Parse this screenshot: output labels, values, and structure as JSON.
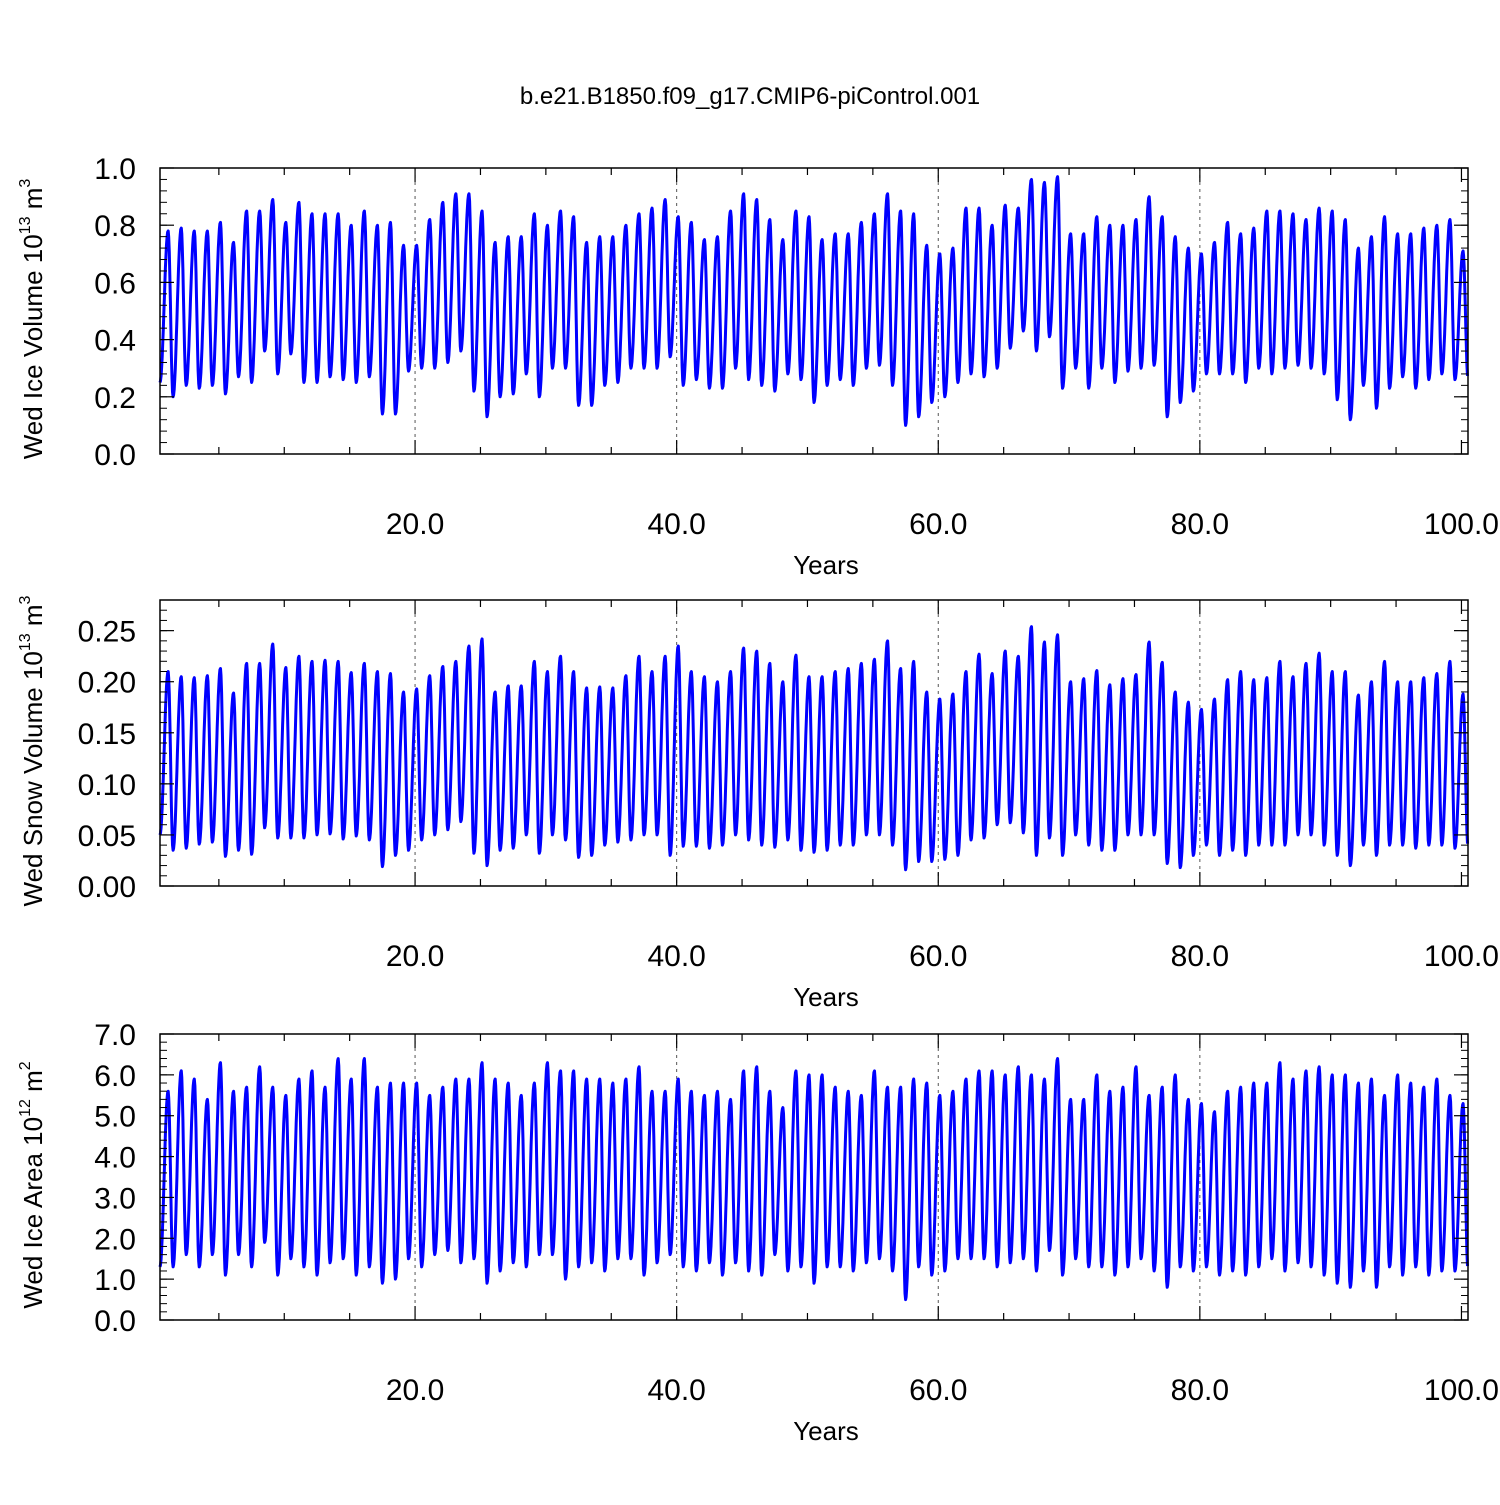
{
  "title": "b.e21.B1850.f09_g17.CMIP6-piControl.001",
  "line_color": "#0000ff",
  "chart_data": [
    {
      "type": "line",
      "xlabel": "Years",
      "ylabel": "Wed Ice Volume 10",
      "ylabel_exp": "13",
      "ylabel_unit": "m",
      "ylabel_unit_exp": "3",
      "xlim": [
        0.5,
        100.5
      ],
      "ylim": [
        0.0,
        1.0
      ],
      "xticks": [
        "20.0",
        "40.0",
        "60.0",
        "80.0",
        "100.0"
      ],
      "yticks": [
        "0.0",
        "0.2",
        "0.4",
        "0.6",
        "0.8",
        "1.0"
      ],
      "series": [
        {
          "x_start_year": 1,
          "values_per_year": 12,
          "annual_max": [
            0.78,
            0.79,
            0.78,
            0.78,
            0.81,
            0.74,
            0.85,
            0.85,
            0.89,
            0.81,
            0.88,
            0.84,
            0.84,
            0.84,
            0.8,
            0.85,
            0.8,
            0.81,
            0.73,
            0.73,
            0.82,
            0.88,
            0.91,
            0.91,
            0.85,
            0.74,
            0.76,
            0.76,
            0.84,
            0.8,
            0.85,
            0.83,
            0.74,
            0.76,
            0.76,
            0.8,
            0.84,
            0.86,
            0.89,
            0.83,
            0.81,
            0.75,
            0.76,
            0.85,
            0.91,
            0.89,
            0.82,
            0.75,
            0.85,
            0.83,
            0.75,
            0.77,
            0.77,
            0.81,
            0.84,
            0.91,
            0.85,
            0.84,
            0.73,
            0.7,
            0.72,
            0.86,
            0.86,
            0.8,
            0.87,
            0.86,
            0.96,
            0.95,
            0.97,
            0.77,
            0.77,
            0.83,
            0.8,
            0.8,
            0.82,
            0.9,
            0.83,
            0.76,
            0.72,
            0.7,
            0.74,
            0.81,
            0.77,
            0.79,
            0.85,
            0.85,
            0.84,
            0.82,
            0.86,
            0.85,
            0.82,
            0.72,
            0.76,
            0.83,
            0.77,
            0.77,
            0.79,
            0.8,
            0.82,
            0.71
          ],
          "annual_min": [
            0.25,
            0.2,
            0.24,
            0.23,
            0.24,
            0.21,
            0.27,
            0.25,
            0.36,
            0.28,
            0.35,
            0.25,
            0.25,
            0.27,
            0.26,
            0.25,
            0.27,
            0.14,
            0.14,
            0.29,
            0.3,
            0.3,
            0.32,
            0.36,
            0.22,
            0.13,
            0.2,
            0.21,
            0.28,
            0.2,
            0.3,
            0.3,
            0.17,
            0.17,
            0.24,
            0.25,
            0.3,
            0.3,
            0.3,
            0.34,
            0.24,
            0.26,
            0.23,
            0.23,
            0.3,
            0.26,
            0.24,
            0.22,
            0.28,
            0.26,
            0.18,
            0.24,
            0.26,
            0.24,
            0.3,
            0.31,
            0.24,
            0.1,
            0.13,
            0.18,
            0.2,
            0.25,
            0.28,
            0.27,
            0.3,
            0.37,
            0.43,
            0.36,
            0.41,
            0.23,
            0.3,
            0.23,
            0.3,
            0.25,
            0.29,
            0.3,
            0.31,
            0.13,
            0.18,
            0.22,
            0.28,
            0.28,
            0.28,
            0.25,
            0.3,
            0.28,
            0.3,
            0.31,
            0.3,
            0.28,
            0.19,
            0.12,
            0.24,
            0.16,
            0.23,
            0.27,
            0.23,
            0.26,
            0.28,
            0.26
          ]
        }
      ]
    },
    {
      "type": "line",
      "xlabel": "Years",
      "ylabel": "Wed Snow Volume 10",
      "ylabel_exp": "13",
      "ylabel_unit": "m",
      "ylabel_unit_exp": "3",
      "xlim": [
        0.5,
        100.5
      ],
      "ylim": [
        0.0,
        0.28
      ],
      "xticks": [
        "20.0",
        "40.0",
        "60.0",
        "80.0",
        "100.0"
      ],
      "yticks": [
        "0.00",
        "0.05",
        "0.10",
        "0.15",
        "0.20",
        "0.25"
      ],
      "series": [
        {
          "x_start_year": 1,
          "values_per_year": 12,
          "annual_max": [
            0.21,
            0.205,
            0.204,
            0.206,
            0.213,
            0.189,
            0.218,
            0.218,
            0.237,
            0.214,
            0.225,
            0.22,
            0.221,
            0.22,
            0.209,
            0.218,
            0.21,
            0.208,
            0.19,
            0.193,
            0.206,
            0.215,
            0.22,
            0.235,
            0.242,
            0.19,
            0.196,
            0.196,
            0.22,
            0.21,
            0.225,
            0.21,
            0.194,
            0.195,
            0.194,
            0.206,
            0.225,
            0.21,
            0.225,
            0.235,
            0.21,
            0.205,
            0.2,
            0.21,
            0.233,
            0.23,
            0.218,
            0.2,
            0.226,
            0.205,
            0.205,
            0.21,
            0.213,
            0.218,
            0.222,
            0.24,
            0.213,
            0.22,
            0.19,
            0.183,
            0.188,
            0.21,
            0.227,
            0.208,
            0.23,
            0.225,
            0.254,
            0.239,
            0.246,
            0.2,
            0.203,
            0.211,
            0.197,
            0.203,
            0.207,
            0.239,
            0.219,
            0.19,
            0.18,
            0.173,
            0.183,
            0.202,
            0.21,
            0.202,
            0.204,
            0.22,
            0.205,
            0.218,
            0.228,
            0.21,
            0.21,
            0.187,
            0.2,
            0.22,
            0.2,
            0.2,
            0.204,
            0.208,
            0.22,
            0.188
          ],
          "annual_min": [
            0.05,
            0.035,
            0.037,
            0.041,
            0.043,
            0.029,
            0.035,
            0.031,
            0.057,
            0.047,
            0.047,
            0.047,
            0.05,
            0.051,
            0.046,
            0.049,
            0.045,
            0.019,
            0.03,
            0.035,
            0.045,
            0.05,
            0.055,
            0.063,
            0.032,
            0.02,
            0.035,
            0.037,
            0.05,
            0.032,
            0.05,
            0.045,
            0.028,
            0.03,
            0.04,
            0.043,
            0.045,
            0.05,
            0.05,
            0.03,
            0.039,
            0.039,
            0.037,
            0.04,
            0.05,
            0.045,
            0.04,
            0.038,
            0.045,
            0.035,
            0.033,
            0.035,
            0.04,
            0.04,
            0.05,
            0.05,
            0.04,
            0.016,
            0.024,
            0.024,
            0.026,
            0.03,
            0.045,
            0.047,
            0.06,
            0.062,
            0.052,
            0.03,
            0.047,
            0.03,
            0.05,
            0.04,
            0.035,
            0.035,
            0.05,
            0.05,
            0.05,
            0.022,
            0.018,
            0.03,
            0.04,
            0.03,
            0.035,
            0.03,
            0.04,
            0.04,
            0.04,
            0.05,
            0.05,
            0.04,
            0.03,
            0.02,
            0.04,
            0.03,
            0.04,
            0.04,
            0.037,
            0.04,
            0.04,
            0.037
          ]
        }
      ]
    },
    {
      "type": "line",
      "xlabel": "Years",
      "ylabel": "Wed Ice Area 10",
      "ylabel_exp": "12",
      "ylabel_unit": "m",
      "ylabel_unit_exp": "2",
      "xlim": [
        0.5,
        100.5
      ],
      "ylim": [
        0.0,
        7.0
      ],
      "xticks": [
        "20.0",
        "40.0",
        "60.0",
        "80.0",
        "100.0"
      ],
      "yticks": [
        "0.0",
        "1.0",
        "2.0",
        "3.0",
        "4.0",
        "5.0",
        "6.0",
        "7.0"
      ],
      "series": [
        {
          "x_start_year": 1,
          "values_per_year": 12,
          "annual_max": [
            5.6,
            6.1,
            5.9,
            5.4,
            6.3,
            5.6,
            5.7,
            6.2,
            5.7,
            5.5,
            5.9,
            6.1,
            5.7,
            6.4,
            5.9,
            6.4,
            5.7,
            5.8,
            5.8,
            5.8,
            5.5,
            5.7,
            5.9,
            5.9,
            6.3,
            5.9,
            5.8,
            5.5,
            5.8,
            6.3,
            6.1,
            6.1,
            5.9,
            5.9,
            5.8,
            5.9,
            6.2,
            5.6,
            5.6,
            5.9,
            5.6,
            5.5,
            5.6,
            5.4,
            6.1,
            6.2,
            5.6,
            5.2,
            6.1,
            6.0,
            6.0,
            5.7,
            5.6,
            5.5,
            6.1,
            5.7,
            5.7,
            5.9,
            5.8,
            5.5,
            5.6,
            5.9,
            6.1,
            6.1,
            6.0,
            6.2,
            6.0,
            5.9,
            6.4,
            5.4,
            5.4,
            6.0,
            5.6,
            5.7,
            6.2,
            5.5,
            5.7,
            6.0,
            5.4,
            5.3,
            5.1,
            5.6,
            5.7,
            5.8,
            5.8,
            6.3,
            5.9,
            6.1,
            6.2,
            6.0,
            6.0,
            5.8,
            5.9,
            5.5,
            6.0,
            5.8,
            5.7,
            5.9,
            5.5,
            5.3
          ],
          "annual_min": [
            1.3,
            1.3,
            1.6,
            1.3,
            1.6,
            1.1,
            1.6,
            1.3,
            1.9,
            1.1,
            1.5,
            1.3,
            1.1,
            1.4,
            1.5,
            1.1,
            1.3,
            0.9,
            1.0,
            1.5,
            1.3,
            1.6,
            1.7,
            1.4,
            1.5,
            0.9,
            1.2,
            1.4,
            1.3,
            1.6,
            1.6,
            1.0,
            1.3,
            1.4,
            1.2,
            1.5,
            1.5,
            1.1,
            1.4,
            1.6,
            1.3,
            1.2,
            1.4,
            1.1,
            1.4,
            1.2,
            1.1,
            1.6,
            1.2,
            1.3,
            0.9,
            1.3,
            1.3,
            1.2,
            1.4,
            1.5,
            1.2,
            0.5,
            1.3,
            1.1,
            1.2,
            1.5,
            1.5,
            1.5,
            1.3,
            1.4,
            1.5,
            1.2,
            1.7,
            1.1,
            1.5,
            1.3,
            1.3,
            1.1,
            1.3,
            1.5,
            1.2,
            0.8,
            1.3,
            1.2,
            1.3,
            1.1,
            1.2,
            1.1,
            1.3,
            1.5,
            1.2,
            1.4,
            1.3,
            1.1,
            0.9,
            0.8,
            1.2,
            0.8,
            1.3,
            1.1,
            1.3,
            1.1,
            1.2,
            1.2
          ]
        }
      ]
    }
  ]
}
